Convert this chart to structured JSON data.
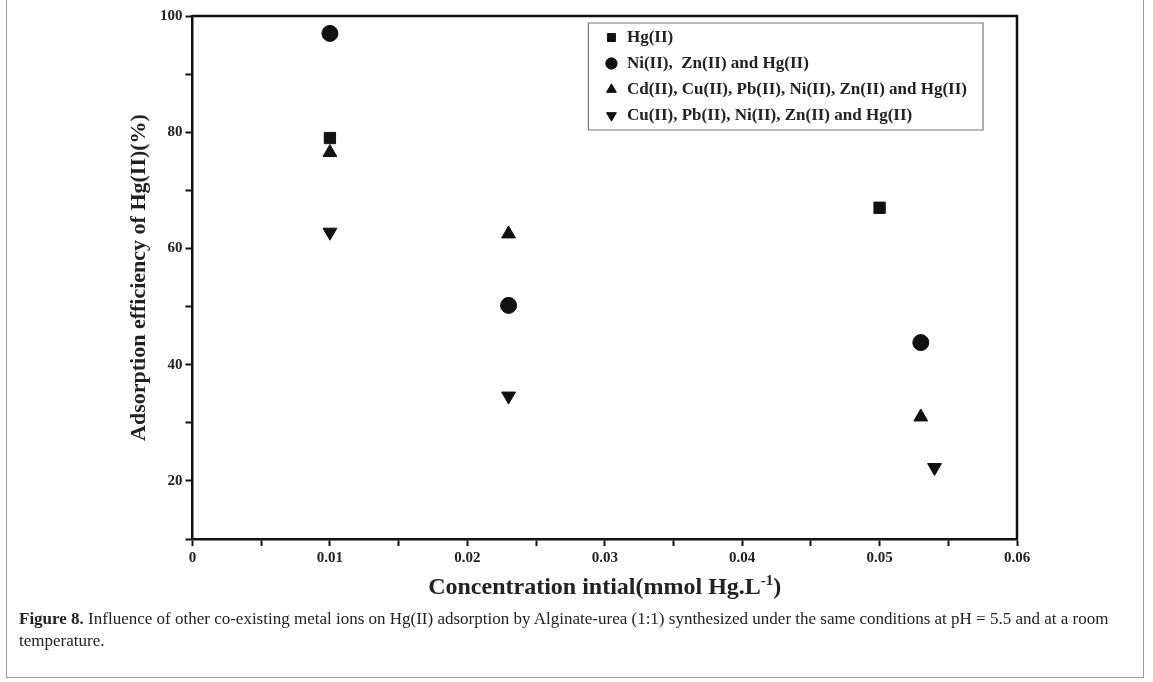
{
  "chart_data": {
    "type": "scatter",
    "xlabel": "Concentration intial(mmol Hg.L$^{-1}$)",
    "ylabel": "Adsorption efficiency of Hg(II)(%)",
    "xlim": [
      0,
      0.06
    ],
    "xticks": [
      0,
      {
        "value": 0.005,
        "label": null
      },
      0.01,
      {
        "value": 0.015,
        "label": null
      },
      0.02,
      {
        "value": 0.025,
        "label": null
      },
      0.03,
      {
        "value": 0.035,
        "label": null
      },
      0.04,
      {
        "value": 0.045,
        "label": null
      },
      0.05,
      {
        "value": 0.055,
        "label": null
      },
      0.06
    ],
    "ylim": [
      10,
      100
    ],
    "yticks": [
      {
        "value": 10,
        "label": null
      },
      20,
      {
        "value": 30,
        "label": null
      },
      40,
      {
        "value": 50,
        "label": null
      },
      60,
      {
        "value": 70,
        "label": null
      },
      80,
      {
        "value": 90,
        "label": null
      },
      100
    ],
    "grid": false,
    "legend": "top right",
    "series": [
      {
        "name": "Hg(II)",
        "color": "#111111",
        "marker": "square",
        "x": [
          0.01,
          0.05
        ],
        "values": [
          79,
          67
        ]
      },
      {
        "name": "Ni(II),  Zn(II) and Hg(II)",
        "color": "#111111",
        "marker": "circle",
        "x": [
          0.01,
          0.023,
          0.053
        ],
        "values": [
          97,
          50.2,
          43.8
        ]
      },
      {
        "name": "Cd(II), Cu(II), Pb(II), Ni(II), Zn(II) and Hg(II)",
        "color": "#111111",
        "marker": "triangle",
        "x": [
          0.01,
          0.023,
          0.053
        ],
        "values": [
          76.5,
          62.5,
          31
        ]
      },
      {
        "name": "Cu(II), Pb(II), Ni(II), Zn(II) and Hg(II)",
        "color": "#111111",
        "marker": "triangle-down",
        "x": [
          0.01,
          0.023,
          0.054
        ],
        "values": [
          62.8,
          34.6,
          22.3
        ]
      }
    ],
    "annotations": [
      "**Figure 8.** Influence of other co-existing metal ions on Hg(II) adsorption by Alginate-urea (1:1) synthesized under the same conditions at pH = 5.5 and at a room temperature."
    ]
  }
}
